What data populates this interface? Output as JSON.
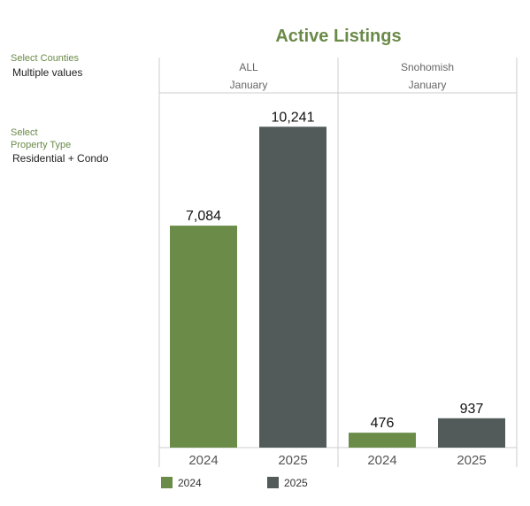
{
  "filters": {
    "counties": {
      "label": "Select Counties",
      "value": "Multiple values"
    },
    "property_type": {
      "label_line1": "Select",
      "label_line2": "Property Type",
      "value": "Residential + Condo"
    }
  },
  "colors": {
    "y2024": "#6b8c48",
    "y2025": "#535b5a",
    "title": "#6a8a48",
    "grid": "#cccccc"
  },
  "chart_data": {
    "type": "bar",
    "title": "Active Listings",
    "ylim": [
      0,
      10700
    ],
    "grid": false,
    "legend_position": "bottom",
    "categories": [
      "2024",
      "2025"
    ],
    "panels": [
      {
        "name": "ALL",
        "month": "January",
        "values": [
          7084,
          10241
        ],
        "labels": [
          "7,084",
          "10,241"
        ]
      },
      {
        "name": "Snohomish",
        "month": "January",
        "values": [
          476,
          937
        ],
        "labels": [
          "476",
          "937"
        ]
      }
    ],
    "legend": [
      {
        "name": "2024",
        "color": "#6b8c48"
      },
      {
        "name": "2025",
        "color": "#535b5a"
      }
    ]
  }
}
